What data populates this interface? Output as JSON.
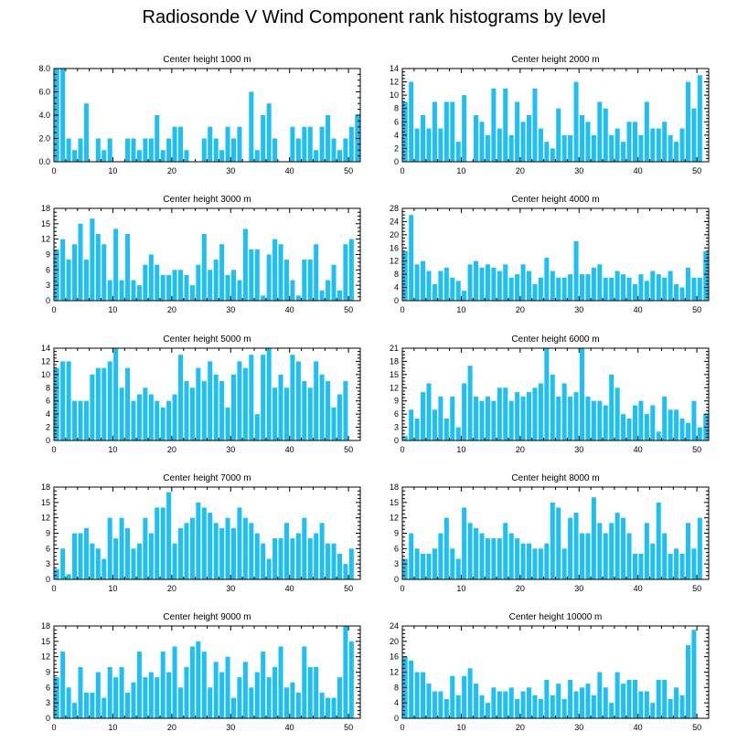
{
  "figure": {
    "title": "Radiosonde V Wind Component rank histograms by level",
    "bar_color": "#1ec0f4",
    "axis_color": "#000000"
  },
  "chart_data": [
    {
      "type": "bar",
      "title": "Center height 1000 m",
      "xlim": [
        0,
        52
      ],
      "xticks": [
        0,
        10,
        20,
        30,
        40,
        50
      ],
      "ylim": [
        0,
        8
      ],
      "yticks": [
        0,
        2,
        4,
        6,
        8
      ],
      "ytick_labels": [
        "0.0",
        "2.0",
        "4.0",
        "6.0",
        "8.0"
      ],
      "values": [
        8,
        8,
        2,
        1,
        2,
        5,
        0,
        2,
        1,
        2,
        0,
        0,
        2,
        2,
        1,
        2,
        2,
        4,
        1,
        2,
        3,
        3,
        1,
        0,
        0,
        2,
        3,
        2,
        1,
        3,
        2,
        3,
        0,
        6,
        1,
        4,
        5,
        2,
        0,
        0,
        3,
        2,
        3,
        3,
        1,
        3,
        4,
        2,
        1,
        2,
        3,
        4
      ]
    },
    {
      "type": "bar",
      "title": "Center height 2000 m",
      "xlim": [
        0,
        52
      ],
      "xticks": [
        0,
        10,
        20,
        30,
        40,
        50
      ],
      "ylim": [
        0,
        14
      ],
      "yticks": [
        0,
        2,
        4,
        6,
        8,
        10,
        12,
        14
      ],
      "ytick_labels": [
        "0",
        "2",
        "4",
        "6",
        "8",
        "10",
        "12",
        "14"
      ],
      "values": [
        9,
        12,
        5,
        7,
        5,
        9,
        5,
        9,
        9,
        3,
        10,
        0,
        7,
        6,
        4,
        11,
        5,
        11,
        4,
        9,
        6,
        7,
        11,
        5,
        3,
        2,
        8,
        4,
        4,
        12,
        7,
        6,
        4,
        9,
        8,
        4,
        5,
        3,
        6,
        6,
        4,
        9,
        5,
        5,
        6,
        4,
        3,
        5,
        12,
        8,
        13,
        0
      ]
    },
    {
      "type": "bar",
      "title": "Center height 3000 m",
      "xlim": [
        0,
        52
      ],
      "xticks": [
        0,
        10,
        20,
        30,
        40,
        50
      ],
      "ylim": [
        0,
        18
      ],
      "yticks": [
        0,
        3,
        6,
        9,
        12,
        15,
        18
      ],
      "ytick_labels": [
        "0",
        "3",
        "6",
        "9",
        "12",
        "15",
        "18"
      ],
      "values": [
        10,
        12,
        8,
        11,
        15,
        8,
        16,
        13,
        11,
        4,
        14,
        4,
        13,
        4,
        3,
        7,
        9,
        7,
        5,
        5,
        6,
        6,
        5,
        3,
        7,
        13,
        6,
        8,
        11,
        5,
        6,
        4,
        14,
        10,
        10,
        1,
        9,
        12,
        11,
        8,
        4,
        1,
        8,
        8,
        11,
        2,
        4,
        7,
        2,
        11,
        12,
        0
      ]
    },
    {
      "type": "bar",
      "title": "Center height 4000 m",
      "xlim": [
        0,
        52
      ],
      "xticks": [
        0,
        10,
        20,
        30,
        40,
        50
      ],
      "ylim": [
        0,
        28
      ],
      "yticks": [
        0,
        4,
        8,
        12,
        16,
        20,
        24,
        28
      ],
      "ytick_labels": [
        "0",
        "4",
        "8",
        "12",
        "16",
        "20",
        "24",
        "28"
      ],
      "values": [
        15,
        26,
        11,
        12,
        9,
        5,
        9,
        10,
        7,
        6,
        3,
        11,
        12,
        10,
        11,
        10,
        9,
        11,
        7,
        8,
        11,
        9,
        5,
        7,
        13,
        9,
        7,
        7,
        8,
        18,
        8,
        8,
        10,
        11,
        7,
        7,
        9,
        8,
        7,
        5,
        8,
        6,
        9,
        8,
        7,
        9,
        5,
        4,
        10,
        7,
        7,
        15
      ]
    },
    {
      "type": "bar",
      "title": "Center height 5000 m",
      "xlim": [
        0,
        52
      ],
      "xticks": [
        0,
        10,
        20,
        30,
        40,
        50
      ],
      "ylim": [
        0,
        14
      ],
      "yticks": [
        0,
        2,
        4,
        6,
        8,
        10,
        12,
        14
      ],
      "ytick_labels": [
        "0",
        "2",
        "4",
        "6",
        "8",
        "10",
        "12",
        "14"
      ],
      "values": [
        11,
        12,
        12,
        6,
        6,
        6,
        10,
        11,
        11,
        12,
        14,
        8,
        11,
        6,
        7,
        8,
        7,
        6,
        5,
        6,
        7,
        13,
        9,
        8,
        11,
        9,
        12,
        10,
        9,
        5,
        10,
        12,
        11,
        13,
        4,
        13,
        14,
        8,
        10,
        8,
        13,
        12,
        9,
        8,
        12,
        10,
        9,
        5,
        7,
        9,
        0,
        0
      ]
    },
    {
      "type": "bar",
      "title": "Center height 6000 m",
      "xlim": [
        0,
        52
      ],
      "xticks": [
        0,
        10,
        20,
        30,
        40,
        50
      ],
      "ylim": [
        0,
        21
      ],
      "yticks": [
        0,
        3,
        6,
        9,
        12,
        15,
        18,
        21
      ],
      "ytick_labels": [
        "0",
        "3",
        "6",
        "9",
        "12",
        "15",
        "18",
        "21"
      ],
      "values": [
        1,
        7,
        5,
        11,
        13,
        7,
        10,
        5,
        10,
        3,
        13,
        17,
        10,
        9,
        10,
        9,
        12,
        12,
        9,
        11,
        10,
        11,
        12,
        13,
        21,
        15,
        10,
        13,
        10,
        11,
        21,
        10,
        9,
        9,
        8,
        15,
        12,
        6,
        5,
        8,
        9,
        6,
        8,
        2,
        10,
        7,
        7,
        5,
        4,
        9,
        3,
        6
      ]
    },
    {
      "type": "bar",
      "title": "Center height 7000 m",
      "xlim": [
        0,
        52
      ],
      "xticks": [
        0,
        10,
        20,
        30,
        40,
        50
      ],
      "ylim": [
        0,
        18
      ],
      "yticks": [
        0,
        3,
        6,
        9,
        12,
        15,
        18
      ],
      "ytick_labels": [
        "0",
        "3",
        "6",
        "9",
        "12",
        "15",
        "18"
      ],
      "values": [
        2,
        6,
        1,
        9,
        9,
        10,
        7,
        6,
        4,
        12,
        8,
        12,
        10,
        6,
        7,
        12,
        9,
        14,
        14,
        17,
        7,
        10,
        11,
        12,
        15,
        14,
        13,
        11,
        10,
        12,
        10,
        14,
        12,
        11,
        9,
        7,
        4,
        8,
        8,
        11,
        8,
        9,
        12,
        8,
        9,
        11,
        7,
        7,
        5,
        3,
        6,
        0
      ]
    },
    {
      "type": "bar",
      "title": "Center height 8000 m",
      "xlim": [
        0,
        52
      ],
      "xticks": [
        0,
        10,
        20,
        30,
        40,
        50
      ],
      "ylim": [
        0,
        18
      ],
      "yticks": [
        0,
        3,
        6,
        9,
        12,
        15,
        18
      ],
      "ytick_labels": [
        "0",
        "3",
        "6",
        "9",
        "12",
        "15",
        "18"
      ],
      "values": [
        4,
        9,
        6,
        5,
        5,
        6,
        9,
        12,
        6,
        4,
        14,
        11,
        10,
        9,
        8,
        8,
        8,
        11,
        9,
        8,
        7,
        7,
        6,
        6,
        7,
        15,
        14,
        6,
        12,
        13,
        9,
        9,
        16,
        11,
        9,
        11,
        13,
        12,
        9,
        5,
        5,
        11,
        7,
        15,
        9,
        5,
        6,
        5,
        11,
        6,
        12,
        0
      ]
    },
    {
      "type": "bar",
      "title": "Center height 9000 m",
      "xlim": [
        0,
        52
      ],
      "xticks": [
        0,
        10,
        20,
        30,
        40,
        50
      ],
      "ylim": [
        0,
        18
      ],
      "yticks": [
        0,
        3,
        6,
        9,
        12,
        15,
        18
      ],
      "ytick_labels": [
        "0",
        "3",
        "6",
        "9",
        "12",
        "15",
        "18"
      ],
      "values": [
        8,
        13,
        6,
        3,
        10,
        5,
        5,
        9,
        4,
        10,
        8,
        10,
        5,
        7,
        13,
        8,
        9,
        8,
        13,
        9,
        14,
        6,
        10,
        14,
        15,
        13,
        6,
        11,
        9,
        12,
        4,
        8,
        11,
        6,
        9,
        13,
        8,
        10,
        14,
        6,
        7,
        5,
        14,
        10,
        10,
        5,
        4,
        4,
        8,
        18,
        15,
        0
      ]
    },
    {
      "type": "bar",
      "title": "Center height 10000 m",
      "xlim": [
        0,
        52
      ],
      "xticks": [
        0,
        10,
        20,
        30,
        40,
        50
      ],
      "ylim": [
        0,
        24
      ],
      "yticks": [
        0,
        4,
        8,
        12,
        16,
        20,
        24
      ],
      "ytick_labels": [
        "0",
        "4",
        "8",
        "12",
        "16",
        "20",
        "24"
      ],
      "values": [
        16,
        15,
        12,
        12,
        9,
        7,
        7,
        5,
        11,
        6,
        11,
        13,
        9,
        6,
        4,
        8,
        7,
        7,
        8,
        5,
        7,
        8,
        6,
        5,
        10,
        6,
        9,
        5,
        10,
        7,
        8,
        9,
        6,
        12,
        8,
        4,
        12,
        9,
        10,
        10,
        7,
        7,
        4,
        10,
        10,
        5,
        8,
        6,
        19,
        23,
        0,
        0
      ]
    }
  ]
}
